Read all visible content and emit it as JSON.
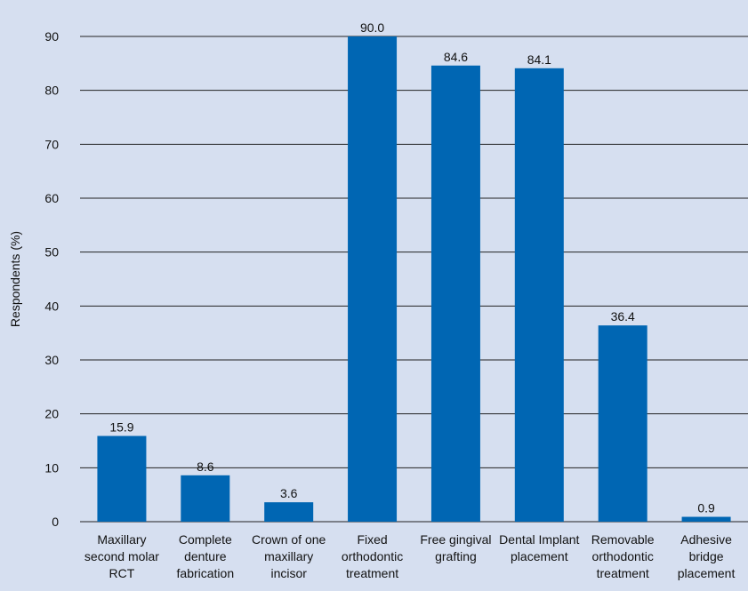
{
  "chart_data": {
    "type": "bar",
    "categories": [
      [
        "Maxillary",
        "second molar",
        "RCT"
      ],
      [
        "Complete",
        "denture",
        "fabrication"
      ],
      [
        "Crown of one",
        "maxillary",
        "incisor"
      ],
      [
        "Fixed",
        "orthodontic",
        "treatment"
      ],
      [
        "Free gingival",
        "grafting"
      ],
      [
        "Dental Implant",
        "placement"
      ],
      [
        "Removable",
        "orthodontic",
        "treatment"
      ],
      [
        "Adhesive",
        "bridge",
        "placement"
      ]
    ],
    "values": [
      15.9,
      8.6,
      3.6,
      90.0,
      84.6,
      84.1,
      36.4,
      0.9
    ],
    "value_labels": [
      "15.9",
      "8.6",
      "3.6",
      "90.0",
      "84.6",
      "84.1",
      "36.4",
      "0.9"
    ],
    "ylabel": "Respondents (%)",
    "xlabel": "",
    "ylim": [
      0,
      90
    ],
    "yticks": [
      0,
      10,
      20,
      30,
      40,
      50,
      60,
      70,
      80,
      90
    ],
    "grid": true,
    "bar_color": "#0066b3",
    "background_color": "#d6dff0"
  }
}
